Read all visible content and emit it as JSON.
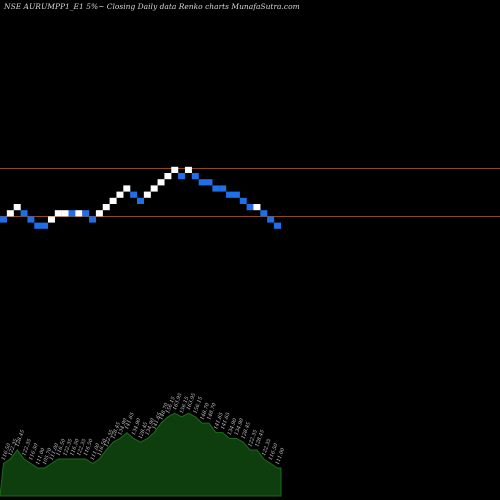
{
  "header": {
    "title": "NSE AURUMPP1_E1 5%~  Closing Daily data  Renko  charts MunafaSutra.com"
  },
  "chart_data": {
    "type": "renko",
    "title": "NSE AURUMPP1_E1 5%~  Closing Daily data  Renko  charts MunafaSutra.com",
    "box_percent": 5,
    "colors": {
      "background": "#000000",
      "up_brick": "#ffffff",
      "down_brick": "#1e6fe8",
      "reference_lines": "#8b4a1a",
      "volume_fill": "#0e3d0e",
      "volume_line": "#1d6b1d"
    },
    "reference_lines": [
      {
        "name": "upper",
        "level": 32
      },
      {
        "name": "lower",
        "level": 3
      }
    ],
    "bricks": [
      {
        "level": 0,
        "dir": "down"
      },
      {
        "level": 1,
        "dir": "up"
      },
      {
        "level": 2,
        "dir": "up"
      },
      {
        "level": 1,
        "dir": "down"
      },
      {
        "level": 0,
        "dir": "down"
      },
      {
        "level": -1,
        "dir": "down"
      },
      {
        "level": -1,
        "dir": "down"
      },
      {
        "level": 0,
        "dir": "up"
      },
      {
        "level": 1,
        "dir": "up"
      },
      {
        "level": 1,
        "dir": "up"
      },
      {
        "level": 1,
        "dir": "down"
      },
      {
        "level": 1,
        "dir": "up"
      },
      {
        "level": 1,
        "dir": "down"
      },
      {
        "level": 0,
        "dir": "down"
      },
      {
        "level": 1,
        "dir": "up"
      },
      {
        "level": 2,
        "dir": "up"
      },
      {
        "level": 3,
        "dir": "up"
      },
      {
        "level": 4,
        "dir": "up"
      },
      {
        "level": 5,
        "dir": "up"
      },
      {
        "level": 4,
        "dir": "down"
      },
      {
        "level": 3,
        "dir": "down"
      },
      {
        "level": 4,
        "dir": "up"
      },
      {
        "level": 5,
        "dir": "up"
      },
      {
        "level": 6,
        "dir": "up"
      },
      {
        "level": 7,
        "dir": "up"
      },
      {
        "level": 8,
        "dir": "up"
      },
      {
        "level": 7,
        "dir": "down"
      },
      {
        "level": 8,
        "dir": "up"
      },
      {
        "level": 7,
        "dir": "down"
      },
      {
        "level": 6,
        "dir": "down"
      },
      {
        "level": 6,
        "dir": "down"
      },
      {
        "level": 5,
        "dir": "down"
      },
      {
        "level": 5,
        "dir": "down"
      },
      {
        "level": 4,
        "dir": "down"
      },
      {
        "level": 4,
        "dir": "down"
      },
      {
        "level": 3,
        "dir": "down"
      },
      {
        "level": 2,
        "dir": "down"
      },
      {
        "level": 2,
        "dir": "up"
      },
      {
        "level": 1,
        "dir": "down"
      },
      {
        "level": 0,
        "dir": "down"
      },
      {
        "level": -1,
        "dir": "down"
      }
    ],
    "volume_labels": [
      "116.50",
      "122.35",
      "128.45",
      "122.35",
      "116.50",
      "111.00",
      "105.70",
      "111.00",
      "116.50",
      "122.35",
      "116.50",
      "122.35",
      "116.50",
      "111.00",
      "116.50",
      "122.35",
      "128.45",
      "134.90",
      "141.65",
      "134.90",
      "128.45",
      "134.90",
      "141.65",
      "148.70",
      "156.15",
      "163.95",
      "156.15",
      "163.95",
      "156.15",
      "148.70",
      "148.70",
      "141.65",
      "141.65",
      "134.90",
      "134.90",
      "128.45",
      "122.35",
      "128.45",
      "122.35",
      "116.50",
      "111.00"
    ]
  }
}
